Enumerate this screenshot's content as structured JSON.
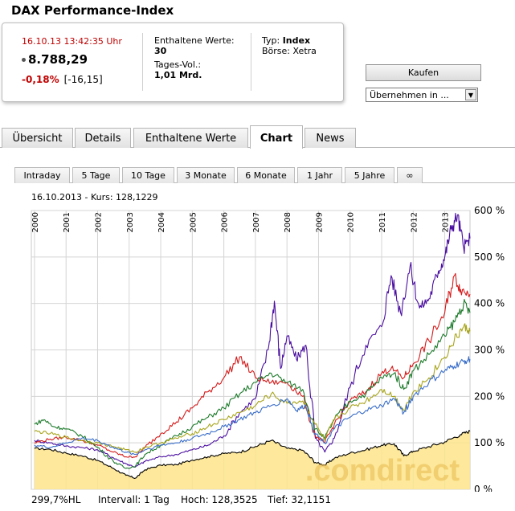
{
  "header": {
    "title": "DAX Performance-Index"
  },
  "quote": {
    "timestamp": "16.10.13  13:42:35 Uhr",
    "price": "8.788,29",
    "change_pct": "-0,18%",
    "change_abs": "[-16,15]",
    "constituents_label": "Enthaltene Werte:",
    "constituents_value": "30",
    "volume_label": "Tages-Vol.:",
    "volume_value": "1,01 Mrd.",
    "type_label": "Typ:",
    "type_value": "Index",
    "exchange_label": "Börse:",
    "exchange_value": "Xetra"
  },
  "actions": {
    "buy_label": "Kaufen",
    "select_value": "Übernehmen in ..."
  },
  "tabs": [
    {
      "label": "Übersicht",
      "active": false
    },
    {
      "label": "Details",
      "active": false
    },
    {
      "label": "Enthaltene Werte",
      "active": false
    },
    {
      "label": "Chart",
      "active": true
    },
    {
      "label": "News",
      "active": false
    }
  ],
  "ranges": [
    {
      "label": "Intraday"
    },
    {
      "label": "5 Tage"
    },
    {
      "label": "10 Tage"
    },
    {
      "label": "3 Monate"
    },
    {
      "label": "6 Monate"
    },
    {
      "label": "1 Jahr"
    },
    {
      "label": "5 Jahre"
    },
    {
      "label": "∞"
    }
  ],
  "chart_header": "16.10.2013  -  Kurs: 128,1229",
  "watermark": ".comdirect",
  "footer": {
    "hl": "299,7%HL",
    "interval": "Intervall: 1 Tag",
    "high": "Hoch: 128,3525",
    "low": "Tief: 32,1151"
  },
  "colors": {
    "accent_red": "#c00000",
    "series_black": "#000000",
    "series_purple": "#4b0fa0",
    "series_red": "#d41a1a",
    "series_green": "#1c7a2a",
    "series_olive": "#a8a51c",
    "series_blue": "#3b6fc9",
    "area_fill": "#fde48a"
  },
  "chart_data": {
    "type": "line",
    "x_ticks": [
      "2000",
      "2001",
      "2002",
      "2003",
      "2004",
      "2005",
      "2006",
      "2007",
      "2008",
      "2009",
      "2010",
      "2011",
      "2012",
      "2013"
    ],
    "y_ticks": [
      "0 %",
      "100 %",
      "200 %",
      "300 %",
      "400 %",
      "500 %",
      "600 %"
    ],
    "ylim": [
      0,
      600
    ],
    "xlim": [
      1999.9,
      2013.8
    ],
    "grid": true,
    "series": [
      {
        "color_key": "series_black",
        "fill": true,
        "x": [
          2000.0,
          2000.5,
          2001.0,
          2001.5,
          2002.0,
          2002.5,
          2002.9,
          2003.2,
          2003.5,
          2004.0,
          2004.5,
          2005.0,
          2005.5,
          2006.0,
          2006.5,
          2007.0,
          2007.5,
          2008.0,
          2008.5,
          2008.9,
          2009.2,
          2009.5,
          2010.0,
          2010.5,
          2011.0,
          2011.4,
          2011.7,
          2012.0,
          2012.5,
          2013.0,
          2013.5,
          2013.8
        ],
        "y": [
          88,
          86,
          78,
          72,
          62,
          45,
          30,
          24,
          42,
          52,
          53,
          63,
          70,
          77,
          80,
          92,
          105,
          88,
          84,
          58,
          52,
          67,
          78,
          85,
          95,
          98,
          72,
          82,
          92,
          102,
          118,
          125
        ]
      },
      {
        "color_key": "series_purple",
        "x": [
          2000.0,
          2000.5,
          2001.0,
          2001.5,
          2002.0,
          2002.5,
          2002.9,
          2003.2,
          2003.5,
          2004.0,
          2004.5,
          2005.0,
          2005.5,
          2006.0,
          2006.5,
          2007.0,
          2007.4,
          2007.6,
          2007.8,
          2008.0,
          2008.3,
          2008.6,
          2008.9,
          2009.2,
          2009.5,
          2010.0,
          2010.5,
          2011.0,
          2011.3,
          2011.6,
          2011.9,
          2012.2,
          2012.5,
          2012.8,
          2013.0,
          2013.2,
          2013.4,
          2013.6,
          2013.8
        ],
        "y": [
          105,
          100,
          93,
          90,
          85,
          68,
          55,
          48,
          60,
          70,
          75,
          85,
          95,
          115,
          165,
          195,
          300,
          405,
          260,
          330,
          280,
          310,
          110,
          80,
          110,
          220,
          310,
          350,
          460,
          380,
          480,
          390,
          410,
          470,
          500,
          560,
          590,
          520,
          540
        ]
      },
      {
        "color_key": "series_red",
        "x": [
          2000.0,
          2000.5,
          2001.0,
          2001.5,
          2002.0,
          2002.5,
          2002.9,
          2003.2,
          2003.5,
          2004.0,
          2004.5,
          2005.0,
          2005.5,
          2006.0,
          2006.5,
          2007.0,
          2007.5,
          2008.0,
          2008.5,
          2008.9,
          2009.2,
          2009.5,
          2010.0,
          2010.5,
          2011.0,
          2011.3,
          2011.7,
          2012.0,
          2012.5,
          2013.0,
          2013.3,
          2013.5,
          2013.8
        ],
        "y": [
          100,
          108,
          112,
          105,
          95,
          80,
          70,
          70,
          90,
          120,
          145,
          175,
          210,
          240,
          285,
          240,
          230,
          230,
          200,
          115,
          100,
          140,
          190,
          210,
          250,
          260,
          240,
          270,
          320,
          380,
          460,
          430,
          420
        ]
      },
      {
        "color_key": "series_green",
        "x": [
          2000.0,
          2000.3,
          2000.6,
          2001.0,
          2001.5,
          2002.0,
          2002.5,
          2002.9,
          2003.2,
          2003.5,
          2004.0,
          2004.5,
          2005.0,
          2005.5,
          2006.0,
          2006.5,
          2007.0,
          2007.5,
          2008.0,
          2008.5,
          2008.9,
          2009.2,
          2009.5,
          2010.0,
          2010.5,
          2011.0,
          2011.4,
          2011.7,
          2012.0,
          2012.5,
          2013.0,
          2013.3,
          2013.6,
          2013.8
        ],
        "y": [
          140,
          150,
          135,
          130,
          115,
          90,
          60,
          45,
          50,
          75,
          95,
          115,
          135,
          155,
          175,
          205,
          230,
          250,
          230,
          215,
          130,
          110,
          150,
          190,
          205,
          240,
          250,
          215,
          255,
          290,
          330,
          360,
          400,
          380
        ]
      },
      {
        "color_key": "series_olive",
        "x": [
          2000.0,
          2000.5,
          2001.0,
          2001.5,
          2002.0,
          2002.5,
          2002.9,
          2003.2,
          2003.5,
          2004.0,
          2004.5,
          2005.0,
          2005.5,
          2006.0,
          2006.5,
          2007.0,
          2007.5,
          2008.0,
          2008.5,
          2008.9,
          2009.2,
          2009.5,
          2010.0,
          2010.5,
          2011.0,
          2011.4,
          2011.7,
          2012.0,
          2012.5,
          2013.0,
          2013.3,
          2013.6,
          2013.8
        ],
        "y": [
          125,
          120,
          112,
          105,
          100,
          92,
          85,
          80,
          90,
          100,
          110,
          120,
          135,
          150,
          165,
          180,
          205,
          185,
          190,
          140,
          105,
          150,
          175,
          190,
          215,
          200,
          170,
          210,
          240,
          285,
          320,
          350,
          340
        ]
      },
      {
        "color_key": "series_blue",
        "x": [
          2000.0,
          2000.5,
          2001.0,
          2001.5,
          2002.0,
          2002.5,
          2002.9,
          2003.2,
          2003.5,
          2004.0,
          2004.5,
          2005.0,
          2005.5,
          2006.0,
          2006.5,
          2007.0,
          2007.5,
          2008.0,
          2008.3,
          2008.6,
          2008.9,
          2009.2,
          2009.5,
          2010.0,
          2010.5,
          2011.0,
          2011.4,
          2011.7,
          2012.0,
          2012.5,
          2013.0,
          2013.3,
          2013.6,
          2013.8
        ],
        "y": [
          95,
          90,
          100,
          110,
          105,
          90,
          80,
          75,
          85,
          95,
          100,
          110,
          120,
          135,
          150,
          165,
          180,
          195,
          170,
          180,
          120,
          100,
          130,
          155,
          170,
          180,
          195,
          165,
          200,
          230,
          255,
          265,
          275,
          280
        ]
      }
    ]
  }
}
